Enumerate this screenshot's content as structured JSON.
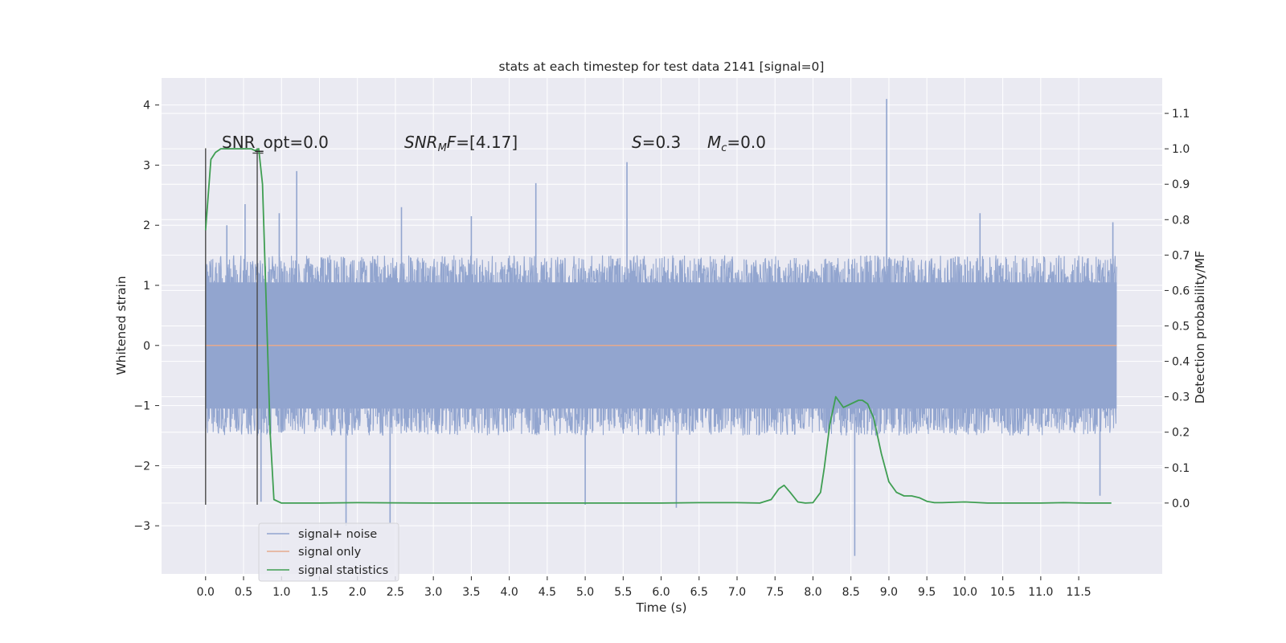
{
  "chart_data": {
    "type": "line",
    "title": "stats at each timestep for test data 2141 [signal=0]",
    "xlabel": "Time (s)",
    "ylabel_left": "Whitened strain",
    "ylabel_right": "Detection probability/MF",
    "xlim": [
      -0.58,
      12.6
    ],
    "ylim_left": [
      -3.8,
      4.45
    ],
    "ylim_right": [
      -0.2,
      1.2
    ],
    "grid": true,
    "xticks": [
      "0.0",
      "0.5",
      "1.0",
      "1.5",
      "2.0",
      "2.5",
      "3.0",
      "3.5",
      "4.0",
      "4.5",
      "5.0",
      "5.5",
      "6.0",
      "6.5",
      "7.0",
      "7.5",
      "8.0",
      "8.5",
      "9.0",
      "9.5",
      "10.0",
      "10.5",
      "11.0",
      "11.5"
    ],
    "yticks_left": [
      "4",
      "3",
      "2",
      "1",
      "0",
      "−1",
      "−2",
      "−3"
    ],
    "yticks_right": [
      "1.1",
      "1.0",
      "0.9",
      "0.8",
      "0.7",
      "0.6",
      "0.5",
      "0.4",
      "0.3",
      "0.2",
      "0.1",
      "0.0"
    ],
    "annotations": {
      "snr_opt": "SNR_opt=0.0",
      "snr_mf_sym": "SNR",
      "snr_mf_sub": "M",
      "snr_mf_rest": "F=[4.17]",
      "s_sym": "S",
      "s_val": "=0.3",
      "mc_sym": "M",
      "mc_sub": "c",
      "mc_val": "=0.0"
    },
    "legend": {
      "placement": "lower-left",
      "entries": [
        "signal+ noise",
        "signal only",
        "signal statistics"
      ]
    },
    "colors": {
      "noise": "#92a5cf",
      "signal": "#e5a98e",
      "statistics": "#3f9e52",
      "marker": "#4a4a4a",
      "background": "#eaeaf2"
    },
    "series": [
      {
        "name": "signal+ noise",
        "axis": "left",
        "t_start": 0.0,
        "t_end": 12.0,
        "typical_envelope": [
          -1.5,
          1.5
        ],
        "peaks": [
          {
            "t": 0.28,
            "y": 2.0
          },
          {
            "t": 0.52,
            "y": 2.35
          },
          {
            "t": 0.73,
            "y": -2.6
          },
          {
            "t": 0.97,
            "y": 2.2
          },
          {
            "t": 1.2,
            "y": 2.9
          },
          {
            "t": 1.85,
            "y": -3.0
          },
          {
            "t": 2.43,
            "y": -2.95
          },
          {
            "t": 2.58,
            "y": 2.3
          },
          {
            "t": 3.5,
            "y": 2.15
          },
          {
            "t": 4.35,
            "y": 2.7
          },
          {
            "t": 5.0,
            "y": -2.65
          },
          {
            "t": 5.55,
            "y": 3.05
          },
          {
            "t": 6.2,
            "y": -2.7
          },
          {
            "t": 8.55,
            "y": -3.5
          },
          {
            "t": 8.97,
            "y": 4.1
          },
          {
            "t": 10.2,
            "y": 2.2
          },
          {
            "t": 11.78,
            "y": -2.5
          },
          {
            "t": 11.95,
            "y": 2.05
          }
        ]
      },
      {
        "name": "signal only",
        "axis": "left",
        "t": [
          0.0,
          12.0
        ],
        "y": [
          0.0,
          0.0
        ]
      },
      {
        "name": "signal statistics",
        "axis": "right",
        "t": [
          0.0,
          0.07,
          0.13,
          0.2,
          0.3,
          0.4,
          0.5,
          0.6,
          0.65,
          0.7,
          0.75,
          0.8,
          0.85,
          0.9,
          1.0,
          1.5,
          2.0,
          3.0,
          4.0,
          5.0,
          5.5,
          6.0,
          6.5,
          7.0,
          7.3,
          7.45,
          7.55,
          7.62,
          7.7,
          7.8,
          7.9,
          8.0,
          8.1,
          8.15,
          8.22,
          8.3,
          8.4,
          8.5,
          8.6,
          8.65,
          8.72,
          8.8,
          8.9,
          9.0,
          9.1,
          9.2,
          9.3,
          9.4,
          9.5,
          9.6,
          9.7,
          10.0,
          10.3,
          11.0,
          11.3,
          11.6,
          11.93
        ],
        "y": [
          0.77,
          0.97,
          0.99,
          1.0,
          1.0,
          1.0,
          1.0,
          1.0,
          0.995,
          1.0,
          0.9,
          0.55,
          0.2,
          0.01,
          0.0,
          0.0,
          0.001,
          0.0,
          0.0,
          0.0,
          0.0,
          0.0,
          0.001,
          0.001,
          0.0,
          0.01,
          0.04,
          0.05,
          0.03,
          0.003,
          0.0,
          0.001,
          0.03,
          0.1,
          0.22,
          0.3,
          0.27,
          0.28,
          0.29,
          0.29,
          0.28,
          0.24,
          0.14,
          0.06,
          0.03,
          0.02,
          0.02,
          0.015,
          0.005,
          0.001,
          0.001,
          0.003,
          0.0,
          0.0,
          0.001,
          0.0,
          0.0
        ]
      }
    ],
    "vertical_markers": [
      {
        "t": 0.0,
        "y_range": [
          -2.65,
          3.28
        ]
      },
      {
        "t": 0.68,
        "y_range": [
          -2.65,
          3.28
        ]
      }
    ],
    "marker_cap": {
      "t_range": [
        0.62,
        0.76
      ],
      "y": 3.2
    }
  }
}
